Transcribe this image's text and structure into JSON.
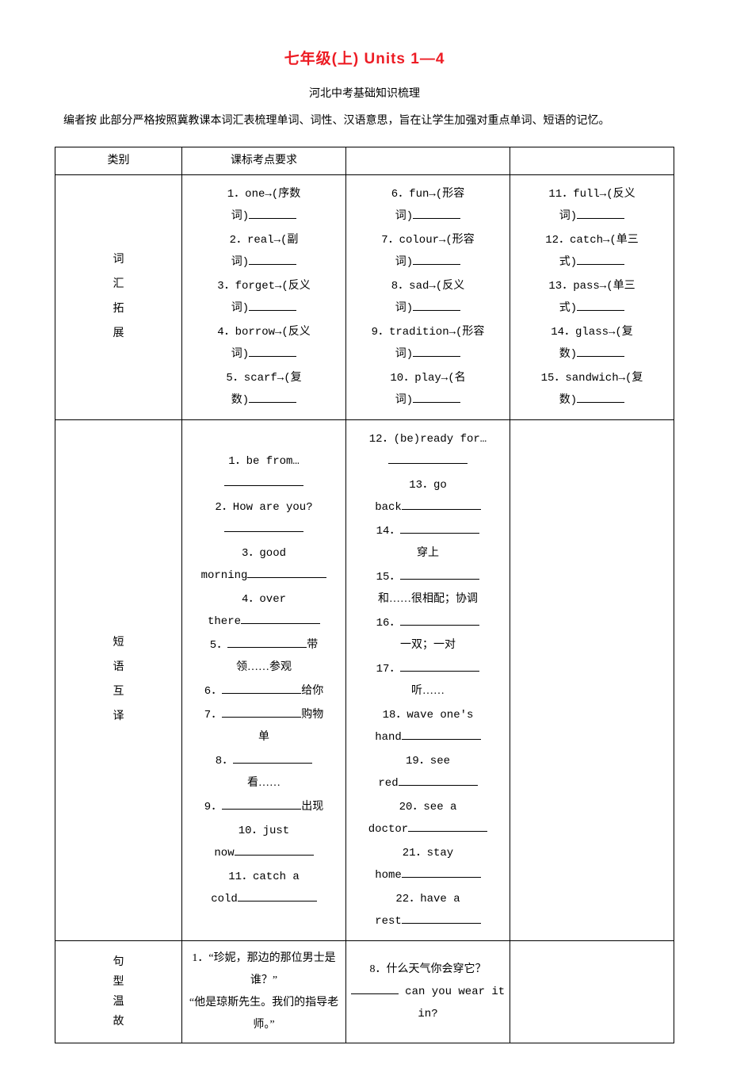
{
  "title": "七年级(上) Units 1—4",
  "subtitle": "河北中考基础知识梳理",
  "intro": "编者按 此部分严格按照冀教课本词汇表梳理单词、词性、汉语意思，旨在让学生加强对重点单词、短语的记忆。",
  "colors": {
    "title_color": "#ed1c24",
    "text_color": "#000000",
    "border_color": "#000000",
    "background": "#ffffff"
  },
  "fonts": {
    "title_family": "SimHei",
    "body_family": "SimSun",
    "eng_family": "Courier New",
    "title_size_pt": 14,
    "body_size_pt": 10.5
  },
  "table": {
    "header": {
      "category": "类别",
      "requirement": "课标考点要求",
      "c3": "",
      "c4": ""
    },
    "sections": [
      {
        "category_chars": [
          "词",
          "汇",
          "拓",
          "展"
        ],
        "cols": [
          [
            {
              "n": "1",
              "pre": "one→(序数",
              "br": "词)",
              "blank": true
            },
            {
              "n": "2",
              "pre": "．real→(副",
              "br": "词)",
              "blank": true
            },
            {
              "n": "3",
              "pre": "．forget→(反义",
              "br": "词)",
              "blank": true
            },
            {
              "n": "4",
              "pre": "．borrow→(反义",
              "br": "词)",
              "blank": true
            },
            {
              "n": "5",
              "pre": "．scarf→(复",
              "br": "数)",
              "blank": true
            }
          ],
          [
            {
              "n": "6",
              "pre": "fun→(形容",
              "br": "词)",
              "blank": true
            },
            {
              "n": "7",
              "pre": "．colour→(形容",
              "br": "词)",
              "blank": true
            },
            {
              "n": "8",
              "pre": "．sad→(反义",
              "br": "词)",
              "blank": true
            },
            {
              "n": "9",
              "pre": "tradition→(形容",
              "br": "词)",
              "blank": true
            },
            {
              "n": "10",
              "pre": "．play→(名",
              "br": "词)",
              "blank": true
            }
          ],
          [
            {
              "n": "11",
              "pre": "full→(反义",
              "br": "词)",
              "blank": true
            },
            {
              "n": "12",
              "pre": "．catch→(单三",
              "br": "式)",
              "blank": true
            },
            {
              "n": "13",
              "pre": "．pass→(单三",
              "br": "式)",
              "blank": true
            },
            {
              "n": "14",
              "pre": "．glass→(复",
              "br": "数)",
              "blank": true
            },
            {
              "n": "15",
              "pre": "．sandwich→(复",
              "br": "数)",
              "blank": true
            }
          ]
        ]
      },
      {
        "category_chars": [
          "短",
          "语",
          "互",
          "译"
        ],
        "col1_items": [
          {
            "text": "1．be from…",
            "blank_below": true
          },
          {
            "text": "2．How are you?",
            "blank_below": true
          },
          {
            "text": "3．good",
            "cont": "morning",
            "blank_after": true
          },
          {
            "text": "4．over",
            "cont": "there",
            "blank_after": true
          },
          {
            "text": "5．",
            "blank_before": true,
            "suffix": "带",
            "cont": "领……参观"
          },
          {
            "text": "6．",
            "blank_before": true,
            "suffix": "给你"
          },
          {
            "text": "7．",
            "blank_before": true,
            "suffix": "购物",
            "cont": "单"
          },
          {
            "text": "8．",
            "blank_after_num": true,
            "cont": "看……"
          },
          {
            "text": "9．",
            "blank_before": true,
            "suffix": "出现"
          },
          {
            "text": "10．just",
            "cont": "now",
            "blank_after": true
          },
          {
            "text": "11．catch a",
            "cont": "cold",
            "blank_after": true
          }
        ],
        "col2_items": [
          {
            "text": "12．(be)ready for…",
            "blank_below": true
          },
          {
            "text": "13．go",
            "cont": "back",
            "blank_after": true
          },
          {
            "text": "14．",
            "blank_after_num": true,
            "cont": "穿上"
          },
          {
            "text": "15．",
            "blank_after_num": true,
            "cont": "和……很相配；协调"
          },
          {
            "text": "16．",
            "blank_after_num": true,
            "cont": "一双；一对"
          },
          {
            "text": "17．",
            "blank_after_num": true,
            "cont": "听……"
          },
          {
            "text": "18．wave one's",
            "cont": "hand",
            "blank_after": true
          },
          {
            "text": "19．see",
            "cont": "red",
            "blank_after": true
          },
          {
            "text": "20．see a",
            "cont": "doctor",
            "blank_after": true
          },
          {
            "text": "21．stay",
            "cont": "home",
            "blank_after": true
          },
          {
            "text": "22．have a",
            "cont": "rest",
            "blank_after": true
          }
        ]
      },
      {
        "category_chars": [
          "句",
          "型",
          "温",
          "故"
        ],
        "col1_text": "1．“珍妮，那边的那位男士是谁？”\n“他是琼斯先生。我们的指导老师。”",
        "col2_text": "8．什么天气你会穿它？\n________ can you wear it in?"
      }
    ]
  }
}
